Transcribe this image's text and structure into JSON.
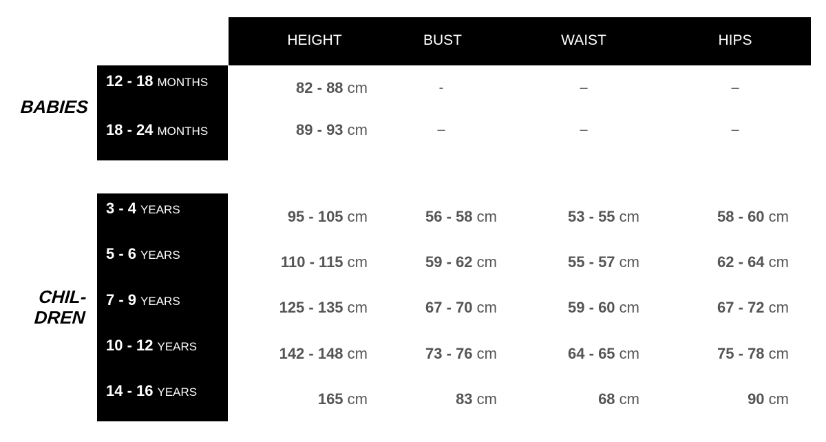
{
  "columns": [
    "HEIGHT",
    "BUST",
    "WAIST",
    "HIPS"
  ],
  "groups": [
    {
      "label": "BABIES",
      "rows": [
        {
          "age": "12 - 18",
          "unit": "MONTHS",
          "values": [
            [
              "82 - 88",
              "cm"
            ],
            [
              "-",
              ""
            ],
            [
              "–",
              ""
            ],
            [
              "–",
              ""
            ]
          ]
        },
        {
          "age": "18 - 24",
          "unit": "MONTHS",
          "values": [
            [
              "89 - 93",
              "cm"
            ],
            [
              "–",
              ""
            ],
            [
              "–",
              ""
            ],
            [
              "–",
              ""
            ]
          ]
        }
      ]
    },
    {
      "label_line1": "CHIL-",
      "label_line2": "DREN",
      "rows": [
        {
          "age": "3 - 4",
          "unit": "YEARS",
          "values": [
            [
              "95 - 105",
              "cm"
            ],
            [
              "56 - 58",
              "cm"
            ],
            [
              "53 - 55",
              "cm"
            ],
            [
              "58 - 60",
              "cm"
            ]
          ]
        },
        {
          "age": "5 - 6",
          "unit": "YEARS",
          "values": [
            [
              "110 - 115",
              "cm"
            ],
            [
              "59 - 62",
              "cm"
            ],
            [
              "55 - 57",
              "cm"
            ],
            [
              "62 - 64",
              "cm"
            ]
          ]
        },
        {
          "age": "7 - 9",
          "unit": "YEARS",
          "values": [
            [
              "125 - 135",
              "cm"
            ],
            [
              "67 - 70",
              "cm"
            ],
            [
              "59 - 60",
              "cm"
            ],
            [
              "67 - 72",
              "cm"
            ]
          ]
        },
        {
          "age": "10 - 12",
          "unit": "YEARS",
          "values": [
            [
              "142 - 148",
              "cm"
            ],
            [
              "73 - 76",
              "cm"
            ],
            [
              "64 - 65",
              "cm"
            ],
            [
              "75 - 78",
              "cm"
            ]
          ]
        },
        {
          "age": "14 - 16",
          "unit": "YEARS",
          "values": [
            [
              "165",
              "cm"
            ],
            [
              "83",
              "cm"
            ],
            [
              "68",
              "cm"
            ],
            [
              "90",
              "cm"
            ]
          ]
        }
      ]
    }
  ]
}
